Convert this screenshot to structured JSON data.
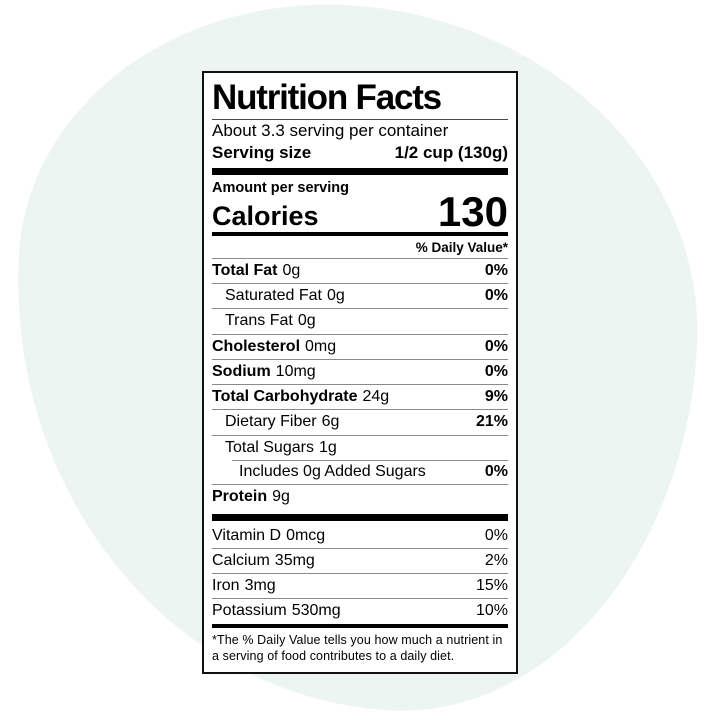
{
  "page": {
    "background_color": "#ffffff",
    "blob_color": "#edf5f2"
  },
  "label": {
    "title": "Nutrition Facts",
    "servings_per_container": "About 3.3 serving per container",
    "serving_size": {
      "label": "Serving size",
      "value": "1/2 cup (130g)"
    },
    "amount_per_serving": "Amount per serving",
    "calories": {
      "label": "Calories",
      "value": "130"
    },
    "daily_value_header": "% Daily Value*",
    "nutrients": [
      {
        "name": "Total Fat",
        "amount": "0g",
        "dv": "0%"
      },
      {
        "name": "Saturated Fat",
        "amount": "0g",
        "dv": "0%"
      },
      {
        "name": "Trans Fat",
        "amount": "0g",
        "dv": ""
      },
      {
        "name": "Cholesterol",
        "amount": "0mg",
        "dv": "0%"
      },
      {
        "name": "Sodium",
        "amount": "10mg",
        "dv": "0%"
      },
      {
        "name": "Total Carbohydrate",
        "amount": "24g",
        "dv": "9%"
      },
      {
        "name": "Dietary Fiber",
        "amount": "6g",
        "dv": "21%"
      },
      {
        "name": "Total Sugars",
        "amount": "1g",
        "dv": ""
      },
      {
        "name": "Includes 0g Added Sugars",
        "amount": "",
        "dv": "0%"
      },
      {
        "name": "Protein",
        "amount": "9g",
        "dv": ""
      }
    ],
    "micronutrients": [
      {
        "name": "Vitamin D",
        "amount": "0mcg",
        "dv": "0%"
      },
      {
        "name": "Calcium",
        "amount": "35mg",
        "dv": "2%"
      },
      {
        "name": "Iron",
        "amount": "3mg",
        "dv": "15%"
      },
      {
        "name": "Potassium",
        "amount": "530mg",
        "dv": "10%"
      }
    ],
    "footnote": "*The % Daily Value tells you how much a nutrient in a serving of food contributes to a daily diet."
  }
}
